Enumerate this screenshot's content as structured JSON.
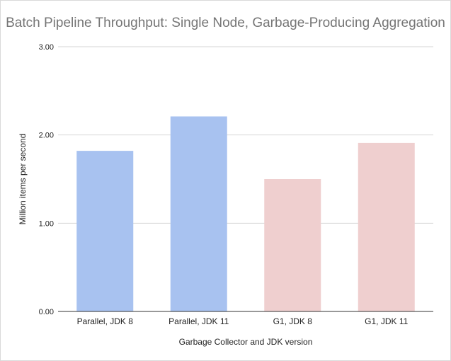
{
  "chart_data": {
    "type": "bar",
    "title": "Batch Pipeline Throughput: Single Node, Garbage-Producing Aggregation",
    "xlabel": "Garbage Collector and JDK version",
    "ylabel": "Million items per second",
    "categories": [
      "Parallel, JDK 8",
      "Parallel, JDK 11",
      "G1, JDK 8",
      "G1, JDK 11"
    ],
    "values": [
      1.82,
      2.21,
      1.5,
      1.91
    ],
    "bar_colors": [
      "#a8c2f0",
      "#a8c2f0",
      "#efcfcf",
      "#efcfcf"
    ],
    "ylim": [
      0,
      3
    ],
    "yticks": [
      0,
      1,
      2,
      3
    ],
    "ytick_labels": [
      "0.00",
      "1.00",
      "2.00",
      "3.00"
    ],
    "grid": true,
    "legend": "none"
  }
}
